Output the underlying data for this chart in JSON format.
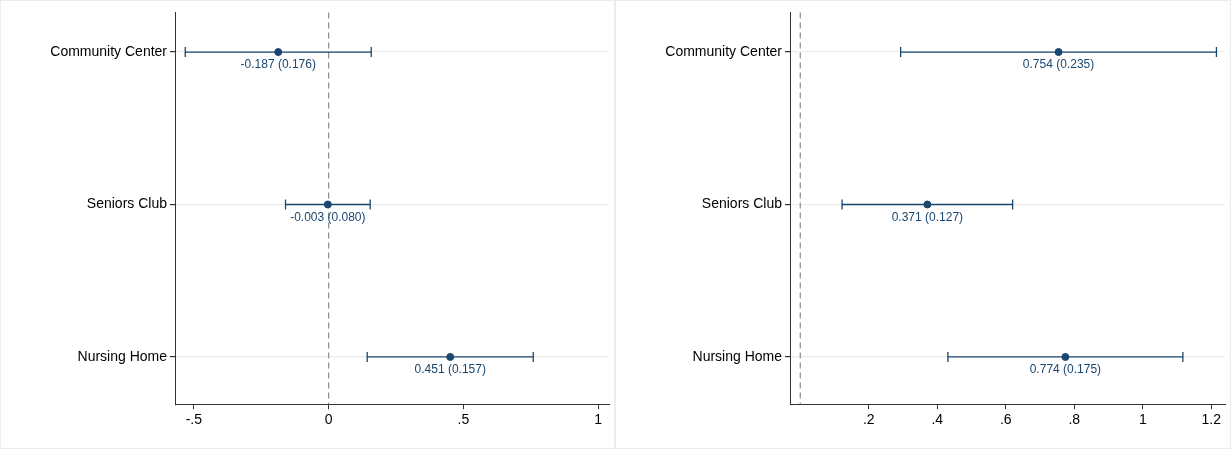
{
  "chart_data": [
    {
      "type": "scatter",
      "orientation": "horizontal",
      "categories": [
        "Community Center",
        "Seniors Club",
        "Nursing Home"
      ],
      "series": [
        {
          "color": "#1a476f",
          "values": [
            -0.187,
            -0.003,
            0.451
          ],
          "errors": [
            [
              -0.532,
              0.158
            ],
            [
              -0.16,
              0.154
            ],
            [
              0.143,
              0.759
            ]
          ],
          "value_labels": [
            "-0.187 (0.176)",
            "-0.003 (0.080)",
            "0.451 (0.157)"
          ]
        }
      ],
      "xlim": [
        -0.57,
        1.04
      ],
      "xticks": [
        {
          "value": -0.5,
          "label": "-.5"
        },
        0,
        {
          "value": 0.5,
          "label": ".5"
        },
        1
      ],
      "ref_lines": [
        {
          "axis": "x",
          "value": 0,
          "color": "#8c8c8c",
          "line_style": "dashed"
        }
      ],
      "grid": "y",
      "marker": "circle",
      "legend": false
    },
    {
      "type": "scatter",
      "orientation": "horizontal",
      "categories": [
        "Community Center",
        "Seniors Club",
        "Nursing Home"
      ],
      "series": [
        {
          "color": "#1a476f",
          "values": [
            0.754,
            0.371,
            0.774
          ],
          "errors": [
            [
              0.293,
              1.215
            ],
            [
              0.122,
              0.62
            ],
            [
              0.431,
              1.117
            ]
          ],
          "value_labels": [
            "0.754 (0.235)",
            "0.371 (0.127)",
            "0.774 (0.175)"
          ]
        }
      ],
      "xlim": [
        -0.03,
        1.24
      ],
      "xticks": [
        {
          "value": 0.2,
          "label": ".2"
        },
        {
          "value": 0.4,
          "label": ".4"
        },
        {
          "value": 0.6,
          "label": ".6"
        },
        {
          "value": 0.8,
          "label": ".8"
        },
        1,
        1.2
      ],
      "ref_lines": [
        {
          "axis": "x",
          "value": 0,
          "color": "#8c8c8c",
          "line_style": "dashed"
        }
      ],
      "grid": "y",
      "marker": "circle",
      "legend": false
    }
  ]
}
